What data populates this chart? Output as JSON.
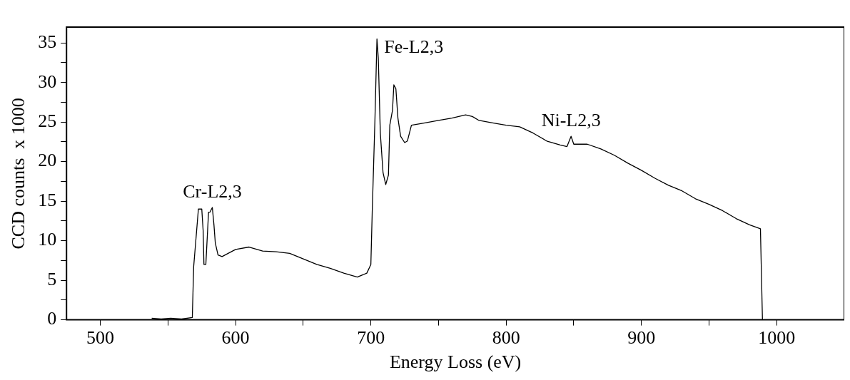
{
  "chart_data": {
    "type": "line",
    "xlabel": "Energy Loss (eV)",
    "ylabel": "CCD counts  x 1000",
    "xlim": [
      475,
      1050
    ],
    "ylim": [
      0,
      37
    ],
    "xticks": [
      500,
      {
        "value": 550,
        "label": null
      },
      600,
      {
        "value": 650,
        "label": null
      },
      700,
      {
        "value": 750,
        "label": null
      },
      800,
      {
        "value": 850,
        "label": null
      },
      900,
      {
        "value": 950,
        "label": null
      },
      1000
    ],
    "yticks": [
      0,
      {
        "value": 2.5,
        "label": null
      },
      5,
      {
        "value": 7.5,
        "label": null
      },
      10,
      {
        "value": 12.5,
        "label": null
      },
      15,
      {
        "value": 17.5,
        "label": null
      },
      20,
      {
        "value": 22.5,
        "label": null
      },
      25,
      {
        "value": 27.5,
        "label": null
      },
      30,
      {
        "value": 32.5,
        "label": null
      },
      35
    ],
    "grid": false,
    "marker": "none",
    "line_style": "solid",
    "series": [
      {
        "color": "#000000",
        "x": [
          538,
          545,
          552,
          560,
          568,
          569,
          572.5,
          575,
          576,
          576.6,
          578,
          580,
          581,
          582.8,
          584,
          585,
          587,
          590,
          600,
          610,
          620,
          630,
          640,
          650,
          660,
          670,
          680,
          690,
          697,
          700,
          701,
          703,
          704.5,
          705.5,
          707,
          709,
          711,
          713,
          714,
          716,
          717,
          718.5,
          720,
          722,
          725,
          727,
          730,
          740,
          750,
          760,
          770,
          775,
          780,
          790,
          800,
          810,
          820,
          830,
          840,
          845,
          848,
          850,
          860,
          870,
          880,
          890,
          900,
          910,
          920,
          930,
          940,
          950,
          960,
          970,
          980,
          988,
          989.5
        ],
        "values": [
          0.2,
          0.1,
          0.2,
          0.1,
          0.3,
          6.7,
          14,
          14,
          11.3,
          7,
          7,
          13.6,
          13.6,
          14.2,
          12,
          9.7,
          8.2,
          8,
          8.9,
          9.2,
          8.7,
          8.6,
          8.4,
          7.7,
          7,
          6.5,
          5.9,
          5.4,
          5.9,
          7,
          13.6,
          25.2,
          35.5,
          33.1,
          23.6,
          18.6,
          17.1,
          18.3,
          24.6,
          26.5,
          29.7,
          29.2,
          25.5,
          23.2,
          22.4,
          22.6,
          24.6,
          24.9,
          25.2,
          25.5,
          25.9,
          25.7,
          25.2,
          24.9,
          24.6,
          24.4,
          23.6,
          22.6,
          22.1,
          21.9,
          23.2,
          22.2,
          22.2,
          21.6,
          20.8,
          19.8,
          18.9,
          17.9,
          17,
          16.3,
          15.3,
          14.6,
          13.8,
          12.8,
          12,
          11.5,
          0
        ]
      }
    ],
    "annotations": [
      {
        "text": "Cr-L2,3",
        "x": 582.8,
        "y": 14.2
      },
      {
        "text": "Fe-L2,3",
        "x": 704.5,
        "y": 35.5
      },
      {
        "text": "Ni-L2,3",
        "x": 848,
        "y": 23.2
      }
    ]
  }
}
